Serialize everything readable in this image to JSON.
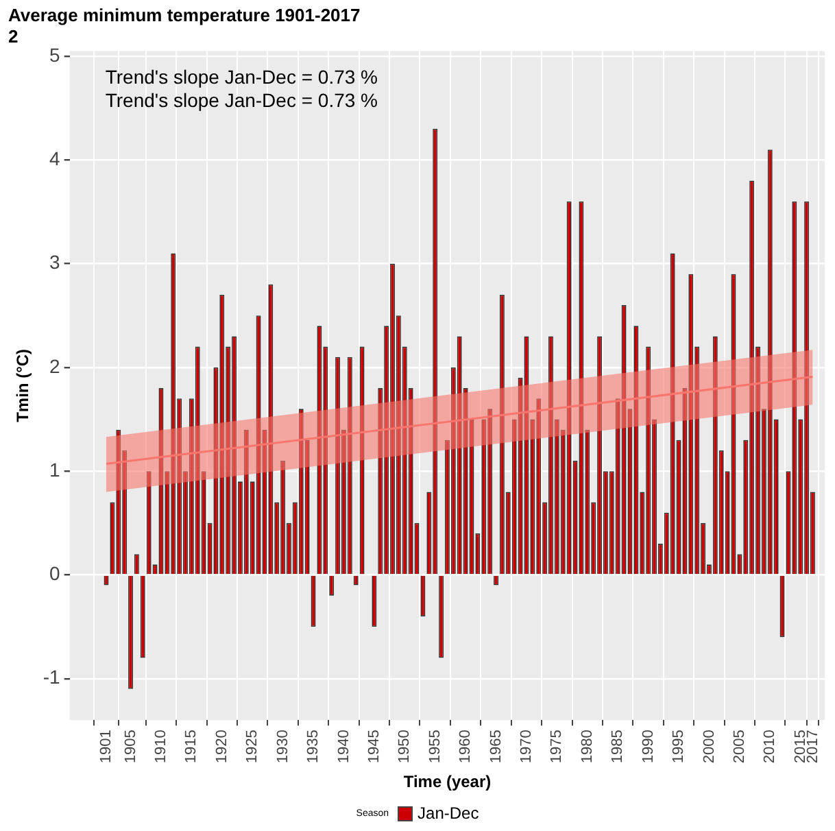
{
  "chart_data": {
    "type": "bar",
    "title": "Average minimum temperature 1901-2017",
    "subtitle": "2",
    "xlabel": "Time (year)",
    "ylabel": "Tmin (°C)",
    "legend_title": "Season",
    "legend": "bottom",
    "grid": true,
    "annotations": [
      "Trend's slope Jan-Dec = 0.73 %",
      "Trend's slope Jan-Dec = 0.73 %"
    ],
    "x": [
      1901,
      1902,
      1903,
      1904,
      1905,
      1906,
      1907,
      1908,
      1909,
      1910,
      1911,
      1912,
      1913,
      1914,
      1915,
      1916,
      1917,
      1918,
      1919,
      1920,
      1921,
      1922,
      1923,
      1924,
      1925,
      1926,
      1927,
      1928,
      1929,
      1930,
      1931,
      1932,
      1933,
      1934,
      1935,
      1936,
      1937,
      1938,
      1939,
      1940,
      1941,
      1942,
      1943,
      1944,
      1945,
      1946,
      1947,
      1948,
      1949,
      1950,
      1951,
      1952,
      1953,
      1954,
      1955,
      1956,
      1957,
      1958,
      1959,
      1960,
      1961,
      1962,
      1963,
      1964,
      1965,
      1966,
      1967,
      1968,
      1969,
      1970,
      1971,
      1972,
      1973,
      1974,
      1975,
      1976,
      1977,
      1978,
      1979,
      1980,
      1981,
      1982,
      1983,
      1984,
      1985,
      1986,
      1987,
      1988,
      1989,
      1990,
      1991,
      1992,
      1993,
      1994,
      1995,
      1996,
      1997,
      1998,
      1999,
      2000,
      2001,
      2002,
      2003,
      2004,
      2005,
      2006,
      2007,
      2008,
      2009,
      2010,
      2011,
      2012,
      2013,
      2014,
      2015,
      2016,
      2017
    ],
    "xlim": [
      1895,
      2019
    ],
    "xticks": [
      1901,
      1905,
      1910,
      1915,
      1920,
      1925,
      1930,
      1935,
      1940,
      1945,
      1950,
      1955,
      1960,
      1965,
      1970,
      1975,
      1980,
      1985,
      1990,
      1995,
      2000,
      2005,
      2010,
      2015,
      2017
    ],
    "ylim": [
      -1.4,
      5.05
    ],
    "yticks": [
      -1,
      0,
      1,
      2,
      3,
      4,
      5
    ],
    "series": [
      {
        "name": "Jan-Dec",
        "color": "#cc0000",
        "values": [
          -0.1,
          0.7,
          1.4,
          1.2,
          -1.1,
          0.2,
          -0.8,
          1.0,
          0.1,
          1.8,
          1.0,
          3.1,
          1.7,
          1.0,
          1.7,
          2.2,
          1.0,
          0.5,
          2.0,
          2.7,
          2.2,
          2.3,
          0.9,
          1.4,
          0.9,
          2.5,
          1.4,
          2.8,
          0.7,
          1.1,
          0.5,
          0.7,
          1.6,
          1.3,
          -0.5,
          2.4,
          2.2,
          -0.2,
          2.1,
          1.4,
          2.1,
          -0.1,
          2.2,
          0,
          -0.5,
          1.8,
          2.4,
          3.0,
          2.5,
          2.2,
          1.8,
          0.5,
          -0.4,
          0.8,
          4.3,
          -0.8,
          1.3,
          2.0,
          2.3,
          1.8,
          1.5,
          0.4,
          1.5,
          1.6,
          -0.1,
          2.7,
          0.8,
          1.5,
          1.9,
          2.3,
          1.5,
          1.7,
          0.7,
          2.3,
          1.5,
          1.4,
          3.6,
          1.1,
          3.6,
          1.4,
          0.7,
          2.3,
          1.0,
          1.0,
          1.7,
          2.6,
          1.6,
          2.4,
          0.8,
          2.2,
          1.5,
          0.3,
          0.6,
          3.1,
          1.3,
          1.8,
          2.9,
          2.2,
          0.5,
          0.1,
          2.3,
          1.2,
          1.0,
          2.9,
          0.2,
          1.3,
          3.8,
          2.2,
          1.6,
          4.1,
          1.5,
          -0.6,
          1.0,
          3.6,
          1.5,
          3.6,
          0.8
        ]
      },
      {
        "type": "line",
        "color": "#f8766d",
        "x": [
          1901,
          2017
        ],
        "values": [
          1.07,
          1.91
        ],
        "lower": [
          0.8,
          1.64
        ],
        "upper": [
          1.33,
          2.17
        ]
      }
    ]
  }
}
